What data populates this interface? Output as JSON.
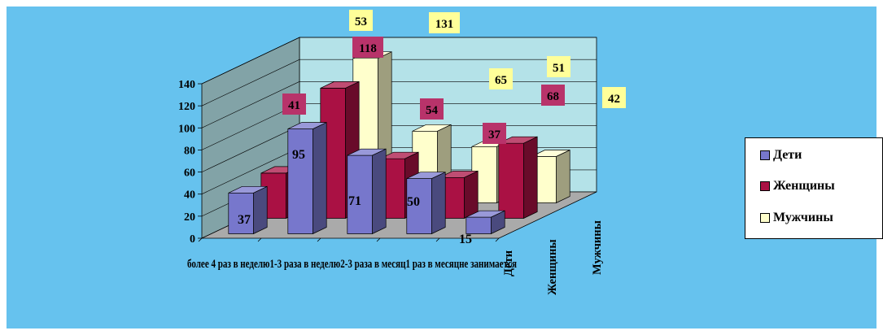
{
  "chart_data": {
    "type": "bar",
    "title": "",
    "xlabel": "",
    "ylabel": "",
    "ylim": [
      0,
      140
    ],
    "yticks": [
      "0",
      "20",
      "40",
      "60",
      "80",
      "100",
      "120",
      "140"
    ],
    "categories": [
      "более 4 раз в неделю",
      "1-3 раза в неделю",
      "2-3 раза в месяц",
      "1 раз в месяц",
      "не занимается"
    ],
    "category_axis_text": "более 4 раз в неделю1-3 раза в неделю2-3 раза в месяц1 раз в месяцне занимается",
    "series": [
      {
        "name": "Дети",
        "values": [
          37,
          95,
          71,
          50,
          15
        ]
      },
      {
        "name": "Женщины",
        "values": [
          41,
          118,
          54,
          37,
          68
        ]
      },
      {
        "name": "Мужчины",
        "values": [
          53,
          131,
          65,
          51,
          42
        ]
      }
    ],
    "legend_position": "right",
    "grid": true
  },
  "colors": {
    "background": "#66c2ee",
    "wall": "#b4e2e8",
    "floor": "#aaaaaa",
    "deti": "#7777cc",
    "zhenshchiny": "#aa1144",
    "muzhchiny": "#ffffcc",
    "label_yellow": "#ffff99",
    "label_crimson": "#b8336a"
  }
}
